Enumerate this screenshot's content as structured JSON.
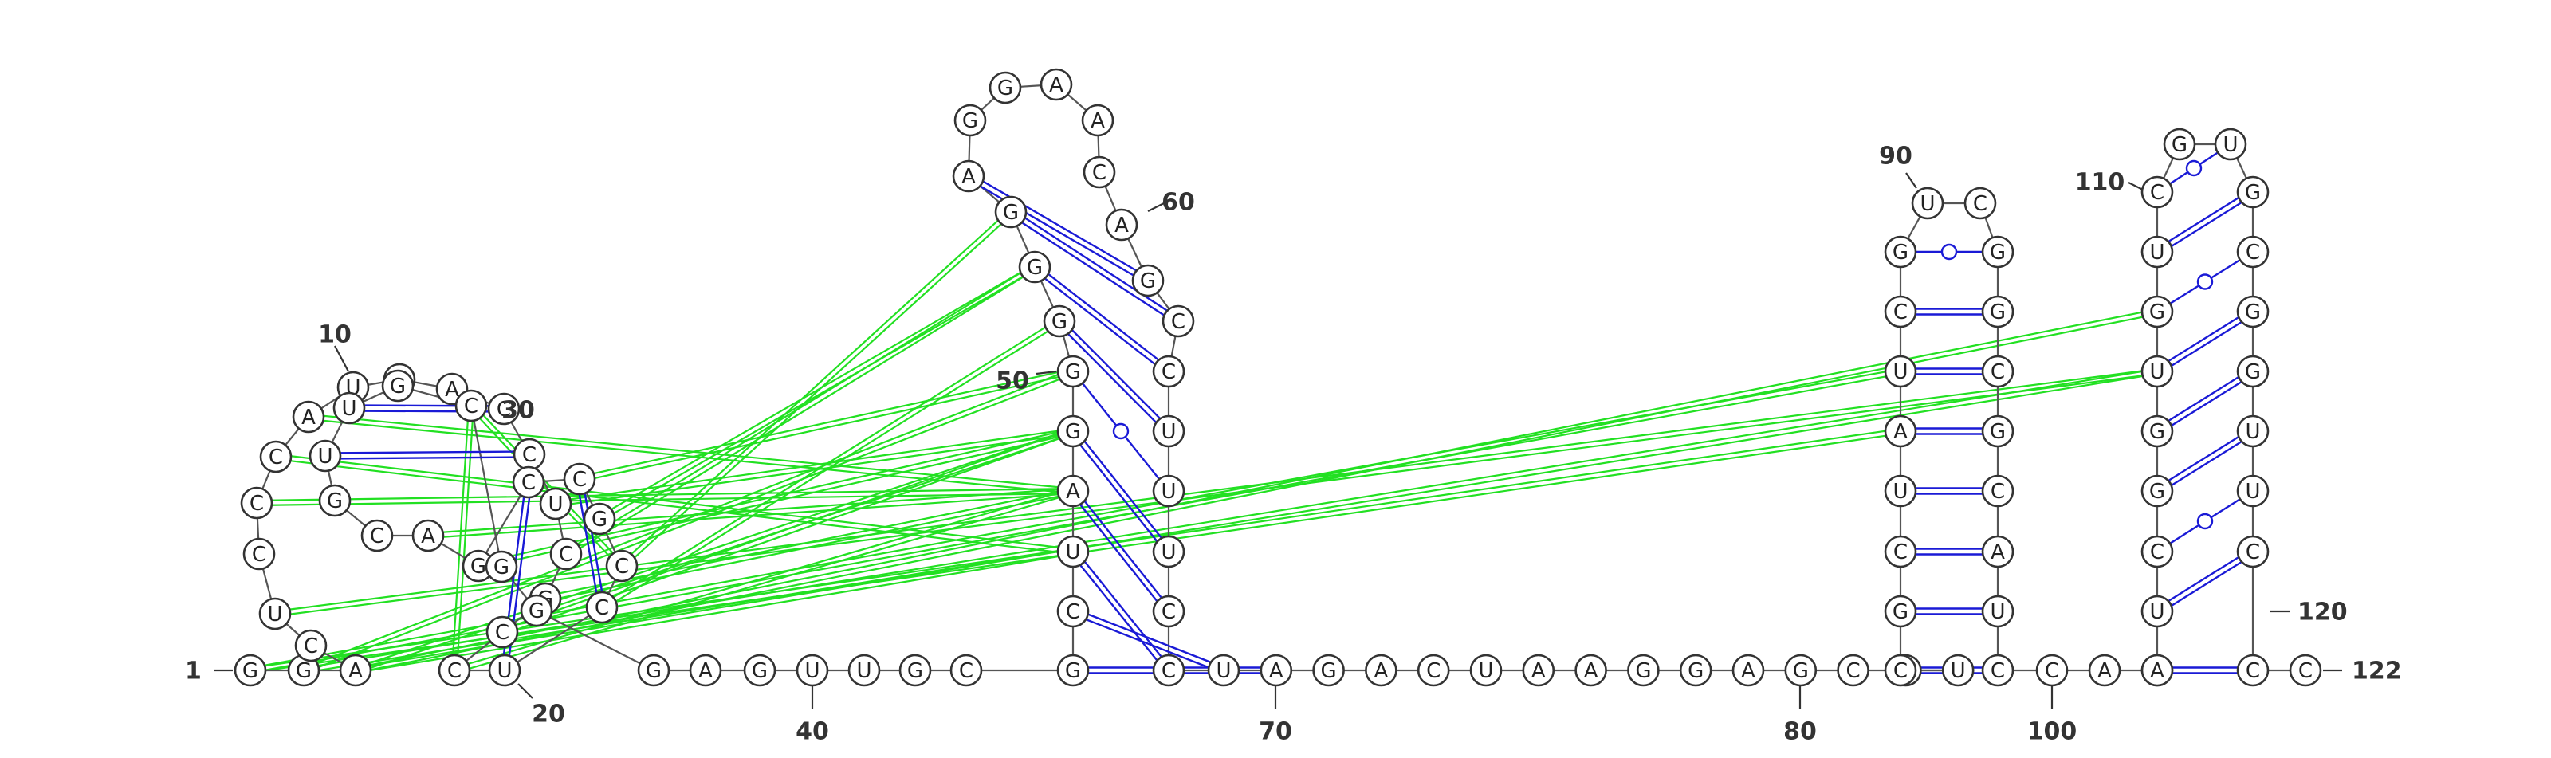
{
  "diagram": {
    "type": "rna-secondary-structure",
    "sequence_length": 122,
    "colors": {
      "background": "#ffffff",
      "nucleotide_stroke": "#333333",
      "backbone": "#555555",
      "canonical_pair": "#1a1ad6",
      "gu_pair": "#1a1ad6",
      "tertiary_interaction": "#22e022"
    },
    "position_labels": [
      "1",
      "10",
      "20",
      "30",
      "40",
      "50",
      "60",
      "70",
      "80",
      "90",
      "100",
      "110",
      "120",
      "122"
    ],
    "nucleotides": [
      "G",
      "G",
      "A",
      "C",
      "U",
      "C",
      "C",
      "C",
      "A",
      "U",
      "U",
      "A",
      "C",
      "C",
      "U",
      "C",
      "G",
      "C",
      "C",
      "U",
      "C",
      "C",
      "G",
      "C",
      "C",
      "G",
      "A",
      "C",
      "G",
      "U",
      "U",
      "G",
      "C",
      "G",
      "G",
      "G",
      "A",
      "G",
      "U",
      "U",
      "G",
      "C",
      "G",
      "C",
      "U",
      "A",
      "G",
      "G",
      "G",
      "G",
      "G",
      "A",
      "G",
      "G",
      "A",
      "A",
      "C",
      "A",
      "G",
      "C",
      "C",
      "U",
      "U",
      "U",
      "C",
      "C",
      "U",
      "A",
      "G",
      "A",
      "C",
      "U",
      "A",
      "A",
      "G",
      "G",
      "A",
      "G",
      "C",
      "A",
      "U",
      "C",
      "G",
      "C",
      "U",
      "A",
      "U",
      "C",
      "G",
      "U",
      "C",
      "G",
      "G",
      "C",
      "G",
      "C",
      "A",
      "U",
      "C",
      "C",
      "A",
      "A",
      "A",
      "U",
      "C",
      "G",
      "G",
      "U",
      "G",
      "U",
      "C",
      "G",
      "U",
      "G",
      "C",
      "G",
      "G",
      "U",
      "U",
      "C",
      "C",
      "C"
    ],
    "base_pairs": [
      {
        "i": 21,
        "j": 24,
        "type": "canonical"
      },
      {
        "i": 20,
        "j": 25,
        "type": "canonical"
      },
      {
        "i": 14,
        "j": 30,
        "type": "canonical"
      },
      {
        "i": 13,
        "j": 31,
        "type": "canonical"
      },
      {
        "i": 43,
        "j": 68,
        "type": "canonical"
      },
      {
        "i": 44,
        "j": 67,
        "type": "canonical"
      },
      {
        "i": 45,
        "j": 66,
        "type": "canonical"
      },
      {
        "i": 46,
        "j": 65,
        "type": "canonical"
      },
      {
        "i": 47,
        "j": 64,
        "type": "canonical"
      },
      {
        "i": 48,
        "j": 63,
        "type": "gu"
      },
      {
        "i": 49,
        "j": 62,
        "type": "canonical"
      },
      {
        "i": 50,
        "j": 61,
        "type": "canonical"
      },
      {
        "i": 51,
        "j": 60,
        "type": "canonical"
      },
      {
        "i": 52,
        "j": 59,
        "type": "canonical"
      },
      {
        "i": 82,
        "j": 99,
        "type": "canonical"
      },
      {
        "i": 83,
        "j": 98,
        "type": "canonical"
      },
      {
        "i": 84,
        "j": 97,
        "type": "canonical"
      },
      {
        "i": 85,
        "j": 96,
        "type": "canonical"
      },
      {
        "i": 86,
        "j": 95,
        "type": "canonical"
      },
      {
        "i": 87,
        "j": 94,
        "type": "canonical"
      },
      {
        "i": 88,
        "j": 93,
        "type": "canonical"
      },
      {
        "i": 89,
        "j": 92,
        "type": "gu"
      },
      {
        "i": 103,
        "j": 121,
        "type": "canonical"
      },
      {
        "i": 104,
        "j": 120,
        "type": "canonical"
      },
      {
        "i": 105,
        "j": 119,
        "type": "gu"
      },
      {
        "i": 106,
        "j": 118,
        "type": "canonical"
      },
      {
        "i": 107,
        "j": 117,
        "type": "canonical"
      },
      {
        "i": 108,
        "j": 116,
        "type": "canonical"
      },
      {
        "i": 109,
        "j": 115,
        "type": "gu"
      },
      {
        "i": 110,
        "j": 114,
        "type": "canonical"
      },
      {
        "i": 111,
        "j": 113,
        "type": "gu"
      }
    ],
    "tertiary_links": [
      [
        2,
        48
      ],
      [
        3,
        47
      ],
      [
        7,
        46
      ],
      [
        8,
        45
      ],
      [
        9,
        46
      ],
      [
        15,
        47
      ],
      [
        16,
        50
      ],
      [
        17,
        46
      ],
      [
        18,
        47
      ],
      [
        19,
        46
      ],
      [
        22,
        51
      ],
      [
        23,
        50
      ],
      [
        1,
        87
      ],
      [
        1,
        86
      ],
      [
        2,
        108
      ],
      [
        3,
        109
      ],
      [
        5,
        108
      ],
      [
        22,
        33
      ],
      [
        19,
        33
      ],
      [
        27,
        46
      ],
      [
        26,
        47
      ],
      [
        24,
        48
      ],
      [
        21,
        49
      ],
      [
        3,
        45
      ]
    ]
  }
}
